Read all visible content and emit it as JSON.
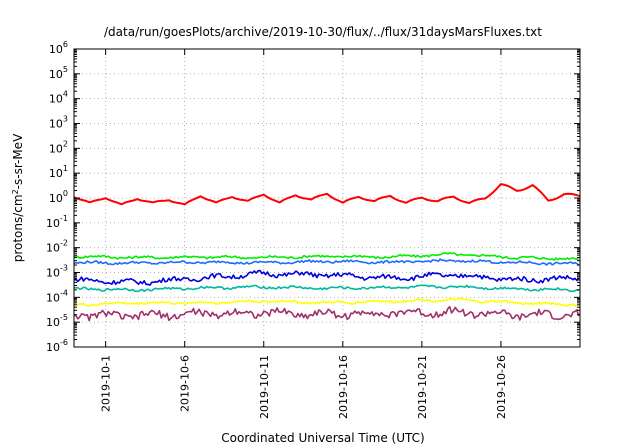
{
  "chart_data": {
    "type": "line",
    "title": "/data/run/goesPlots/archive/2019-10-30/flux/../flux/31daysMarsFluxes.txt",
    "xlabel": "Coordinated Universal Time (UTC)",
    "ylabel_base": "protons/cm",
    "ylabel_sup": "2",
    "ylabel_rest": "-s-sr-MeV",
    "yscale": "log",
    "ylim": [
      1e-06,
      1000000.0
    ],
    "xlim": [
      "2019-09-29",
      "2019-10-31"
    ],
    "y_ticks": [
      {
        "value": 1e-06,
        "base": "10",
        "exp": "-6"
      },
      {
        "value": 1e-05,
        "base": "10",
        "exp": "-5"
      },
      {
        "value": 0.0001,
        "base": "10",
        "exp": "-4"
      },
      {
        "value": 0.001,
        "base": "10",
        "exp": "-3"
      },
      {
        "value": 0.01,
        "base": "10",
        "exp": "-2"
      },
      {
        "value": 0.1,
        "base": "10",
        "exp": "-1"
      },
      {
        "value": 1,
        "base": "10",
        "exp": "0"
      },
      {
        "value": 10,
        "base": "10",
        "exp": "1"
      },
      {
        "value": 100,
        "base": "10",
        "exp": "2"
      },
      {
        "value": 1000,
        "base": "10",
        "exp": "3"
      },
      {
        "value": 10000,
        "base": "10",
        "exp": "4"
      },
      {
        "value": 100000,
        "base": "10",
        "exp": "5"
      },
      {
        "value": 1000000,
        "base": "10",
        "exp": "6"
      }
    ],
    "x_ticks": [
      "2019-10-1",
      "2019-10-6",
      "2019-10-11",
      "2019-10-16",
      "2019-10-21",
      "2019-10-26"
    ],
    "grid": true,
    "series": [
      {
        "color": "#ff0000",
        "values": [
          [
            "2019-09-29",
            1.2
          ],
          [
            "2019-09-30",
            0.6
          ],
          [
            "2019-10-01",
            1.1
          ],
          [
            "2019-10-02",
            0.5
          ],
          [
            "2019-10-03",
            1.0
          ],
          [
            "2019-10-04",
            0.6
          ],
          [
            "2019-10-05",
            0.9
          ],
          [
            "2019-10-06",
            0.5
          ],
          [
            "2019-10-07",
            1.3
          ],
          [
            "2019-10-08",
            0.6
          ],
          [
            "2019-10-09",
            1.2
          ],
          [
            "2019-10-10",
            0.7
          ],
          [
            "2019-10-11",
            1.5
          ],
          [
            "2019-10-12",
            0.6
          ],
          [
            "2019-10-13",
            1.4
          ],
          [
            "2019-10-14",
            0.8
          ],
          [
            "2019-10-15",
            1.6
          ],
          [
            "2019-10-16",
            0.6
          ],
          [
            "2019-10-17",
            1.2
          ],
          [
            "2019-10-18",
            0.7
          ],
          [
            "2019-10-19",
            1.3
          ],
          [
            "2019-10-20",
            0.6
          ],
          [
            "2019-10-21",
            1.1
          ],
          [
            "2019-10-22",
            0.7
          ],
          [
            "2019-10-23",
            1.2
          ],
          [
            "2019-10-24",
            0.6
          ],
          [
            "2019-10-25",
            1.0
          ],
          [
            "2019-10-26",
            3.5
          ],
          [
            "2019-10-27",
            2.0
          ],
          [
            "2019-10-28",
            3.2
          ],
          [
            "2019-10-29",
            0.8
          ],
          [
            "2019-10-30",
            1.4
          ],
          [
            "2019-10-31",
            1.2
          ]
        ]
      },
      {
        "color": "#00ee00",
        "values": [
          [
            "2019-09-29",
            0.0045
          ],
          [
            "2019-10-03",
            0.004
          ],
          [
            "2019-10-07",
            0.0042
          ],
          [
            "2019-10-11",
            0.004
          ],
          [
            "2019-10-15",
            0.0045
          ],
          [
            "2019-10-19",
            0.0042
          ],
          [
            "2019-10-23",
            0.0055
          ],
          [
            "2019-10-27",
            0.004
          ],
          [
            "2019-10-31",
            0.0035
          ]
        ]
      },
      {
        "color": "#1f6bff",
        "values": [
          [
            "2019-09-29",
            0.0025
          ],
          [
            "2019-10-03",
            0.0024
          ],
          [
            "2019-10-07",
            0.0026
          ],
          [
            "2019-10-11",
            0.0025
          ],
          [
            "2019-10-15",
            0.0028
          ],
          [
            "2019-10-19",
            0.0026
          ],
          [
            "2019-10-23",
            0.003
          ],
          [
            "2019-10-27",
            0.0025
          ],
          [
            "2019-10-31",
            0.0022
          ]
        ]
      },
      {
        "color": "#0000dd",
        "values": [
          [
            "2019-09-29",
            0.0005
          ],
          [
            "2019-10-03",
            0.0004
          ],
          [
            "2019-10-07",
            0.0006
          ],
          [
            "2019-10-11",
            0.0009
          ],
          [
            "2019-10-15",
            0.0008
          ],
          [
            "2019-10-19",
            0.0006
          ],
          [
            "2019-10-23",
            0.0008
          ],
          [
            "2019-10-27",
            0.0005
          ],
          [
            "2019-10-31",
            0.0006
          ]
        ]
      },
      {
        "color": "#00b8a0",
        "values": [
          [
            "2019-09-29",
            0.00022
          ],
          [
            "2019-10-03",
            0.0002
          ],
          [
            "2019-10-07",
            0.00024
          ],
          [
            "2019-10-11",
            0.00026
          ],
          [
            "2019-10-15",
            0.00023
          ],
          [
            "2019-10-19",
            0.00025
          ],
          [
            "2019-10-23",
            0.00027
          ],
          [
            "2019-10-27",
            0.00022
          ],
          [
            "2019-10-31",
            0.0002
          ]
        ]
      },
      {
        "color": "#ffff00",
        "values": [
          [
            "2019-09-29",
            5e-05
          ],
          [
            "2019-10-03",
            6e-05
          ],
          [
            "2019-10-07",
            6e-05
          ],
          [
            "2019-10-11",
            7e-05
          ],
          [
            "2019-10-15",
            6e-05
          ],
          [
            "2019-10-19",
            7e-05
          ],
          [
            "2019-10-23",
            8e-05
          ],
          [
            "2019-10-27",
            6e-05
          ],
          [
            "2019-10-31",
            5e-05
          ]
        ]
      },
      {
        "color": "#a0306a",
        "values": [
          [
            "2019-09-29",
            2e-05
          ],
          [
            "2019-10-03",
            1.8e-05
          ],
          [
            "2019-10-07",
            2.2e-05
          ],
          [
            "2019-10-11",
            2.4e-05
          ],
          [
            "2019-10-15",
            2.1e-05
          ],
          [
            "2019-10-19",
            2.3e-05
          ],
          [
            "2019-10-23",
            2.6e-05
          ],
          [
            "2019-10-27",
            1.9e-05
          ],
          [
            "2019-10-31",
            2e-05
          ]
        ]
      }
    ]
  }
}
